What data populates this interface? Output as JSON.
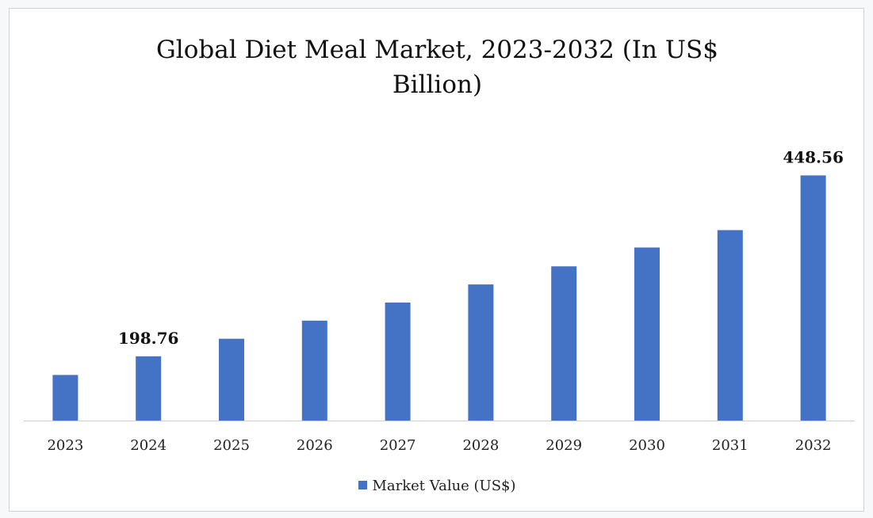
{
  "chart_data": {
    "type": "bar",
    "title_line1": "Global Diet Meal Market, 2023-2032 (In US$",
    "title_line2": "Billion)",
    "categories": [
      "2023",
      "2024",
      "2025",
      "2026",
      "2027",
      "2028",
      "2029",
      "2030",
      "2031",
      "2032"
    ],
    "series": [
      {
        "name": "Market Value (US$)",
        "values": [
          173.0,
          198.76,
          223.0,
          248.0,
          273.0,
          298.0,
          323.0,
          349.0,
          373.0,
          448.56
        ],
        "color": "#4472c4"
      }
    ],
    "data_labels": [
      {
        "category": "2024",
        "text": "198.76"
      },
      {
        "category": "2032",
        "text": "448.56"
      }
    ],
    "ylim": [
      110,
      460
    ],
    "xlabel": "",
    "ylabel": "",
    "grid": false,
    "legend_position": "bottom"
  }
}
